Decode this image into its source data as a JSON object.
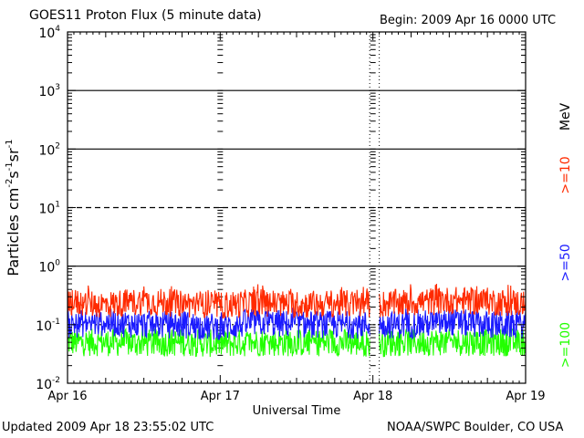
{
  "header": {
    "title": "GOES11 Proton Flux (5 minute data)",
    "begin": "Begin: 2009 Apr 16 0000 UTC"
  },
  "footer": {
    "updated": "Updated 2009 Apr 18 23:55:02 UTC",
    "source": "NOAA/SWPC Boulder, CO USA"
  },
  "colors": {
    "ge10": "#ff2a00",
    "ge50": "#1a1aff",
    "ge100": "#22ff00",
    "axis": "#000000"
  },
  "chart_data": {
    "type": "line",
    "title": "GOES11 Proton Flux (5 minute data)",
    "xlabel": "Universal Time",
    "ylabel": "Particles cm-2s-1sr-1",
    "y_scale": "log",
    "ylim": [
      0.01,
      10000
    ],
    "y_ticks": [
      {
        "base": "10",
        "exp": "-2",
        "value": 0.01
      },
      {
        "base": "10",
        "exp": "-1",
        "value": 0.1
      },
      {
        "base": "10",
        "exp": "0",
        "value": 1
      },
      {
        "base": "10",
        "exp": "1",
        "value": 10
      },
      {
        "base": "10",
        "exp": "2",
        "value": 100
      },
      {
        "base": "10",
        "exp": "3",
        "value": 1000
      },
      {
        "base": "10",
        "exp": "4",
        "value": 10000
      }
    ],
    "x_ticks": [
      "Apr 16",
      "Apr 17",
      "Apr 18",
      "Apr 19"
    ],
    "xlim": [
      "2009-04-16 00:00",
      "2009-04-19 00:00"
    ],
    "gridlines": [
      {
        "value": 0.1,
        "style": "dotted"
      },
      {
        "value": 1,
        "style": "solid"
      },
      {
        "value": 10,
        "style": "dashed"
      },
      {
        "value": 100,
        "style": "solid"
      },
      {
        "value": 1000,
        "style": "solid"
      }
    ],
    "data_gap": [
      "2009-04-17 23:30",
      "2009-04-18 01:00"
    ],
    "legend": {
      "unit": "MeV",
      "placement": "right"
    },
    "series": [
      {
        "name": ">=10",
        "color": "#ff2a00",
        "min": 0.13,
        "max": 0.5,
        "typical": 0.23,
        "x": [
          "2009-04-16 00:00",
          "2009-04-16 06:00",
          "2009-04-16 12:00",
          "2009-04-16 18:00",
          "2009-04-17 00:00",
          "2009-04-17 06:00",
          "2009-04-17 12:00",
          "2009-04-17 18:00",
          "2009-04-18 00:00",
          "2009-04-18 06:00",
          "2009-04-18 12:00",
          "2009-04-18 18:00",
          "2009-04-19 00:00"
        ],
        "y": [
          0.24,
          0.22,
          0.25,
          0.23,
          0.21,
          0.24,
          0.22,
          0.23,
          0.22,
          0.24,
          0.26,
          0.25,
          0.23
        ]
      },
      {
        "name": ">=50",
        "color": "#1a1aff",
        "min": 0.055,
        "max": 0.2,
        "typical": 0.1,
        "x": [
          "2009-04-16 00:00",
          "2009-04-16 06:00",
          "2009-04-16 12:00",
          "2009-04-16 18:00",
          "2009-04-17 00:00",
          "2009-04-17 06:00",
          "2009-04-17 12:00",
          "2009-04-17 18:00",
          "2009-04-18 00:00",
          "2009-04-18 06:00",
          "2009-04-18 12:00",
          "2009-04-18 18:00",
          "2009-04-19 00:00"
        ],
        "y": [
          0.1,
          0.11,
          0.1,
          0.1,
          0.09,
          0.11,
          0.1,
          0.1,
          0.1,
          0.1,
          0.11,
          0.1,
          0.1
        ]
      },
      {
        "name": ">=100",
        "color": "#22ff00",
        "min": 0.028,
        "max": 0.085,
        "typical": 0.05,
        "x": [
          "2009-04-16 00:00",
          "2009-04-16 06:00",
          "2009-04-16 12:00",
          "2009-04-16 18:00",
          "2009-04-17 00:00",
          "2009-04-17 06:00",
          "2009-04-17 12:00",
          "2009-04-17 18:00",
          "2009-04-18 00:00",
          "2009-04-18 06:00",
          "2009-04-18 12:00",
          "2009-04-18 18:00",
          "2009-04-19 00:00"
        ],
        "y": [
          0.05,
          0.05,
          0.048,
          0.05,
          0.047,
          0.05,
          0.049,
          0.05,
          0.048,
          0.05,
          0.051,
          0.05,
          0.05
        ]
      }
    ]
  }
}
